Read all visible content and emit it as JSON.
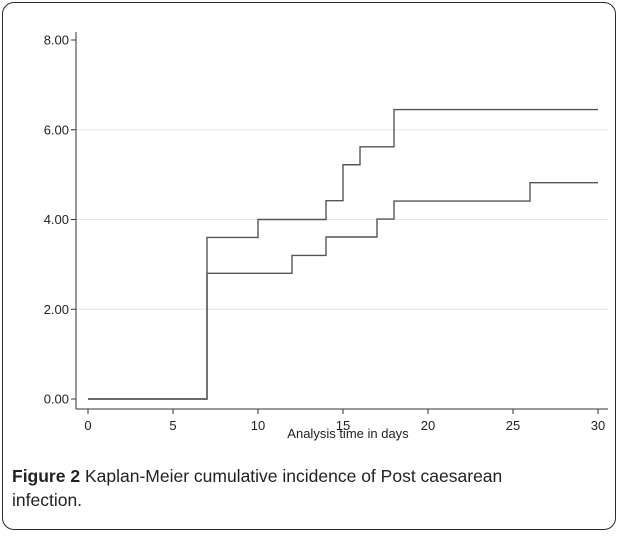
{
  "chart_data": {
    "type": "line",
    "title": "",
    "xlabel": "Analysis time in days",
    "ylabel": "",
    "xlim": [
      0,
      30
    ],
    "ylim": [
      0,
      8
    ],
    "x_ticks": [
      0,
      5,
      10,
      15,
      20,
      25,
      30
    ],
    "y_ticks": [
      0,
      2,
      4,
      6,
      8
    ],
    "x_tick_labels": [
      "0",
      "5",
      "10",
      "15",
      "20",
      "25",
      "30"
    ],
    "y_tick_labels": [
      "0.00",
      "2.00",
      "4.00",
      "6.00",
      "8.00"
    ],
    "grid": true,
    "step": true,
    "series": [
      {
        "x": [
          0,
          7,
          10,
          14,
          15,
          16,
          18,
          30
        ],
        "y": [
          0,
          3.6,
          4.0,
          4.42,
          5.22,
          5.62,
          6.45,
          6.45
        ]
      },
      {
        "x": [
          0,
          7,
          12,
          14,
          17,
          18,
          26,
          30
        ],
        "y": [
          0,
          2.8,
          3.2,
          3.61,
          4.01,
          4.41,
          4.82,
          4.82
        ]
      }
    ]
  },
  "caption": {
    "label": "Figure 2",
    "text": "Kaplan-Meier cumulative incidence of Post caesarean infection."
  }
}
